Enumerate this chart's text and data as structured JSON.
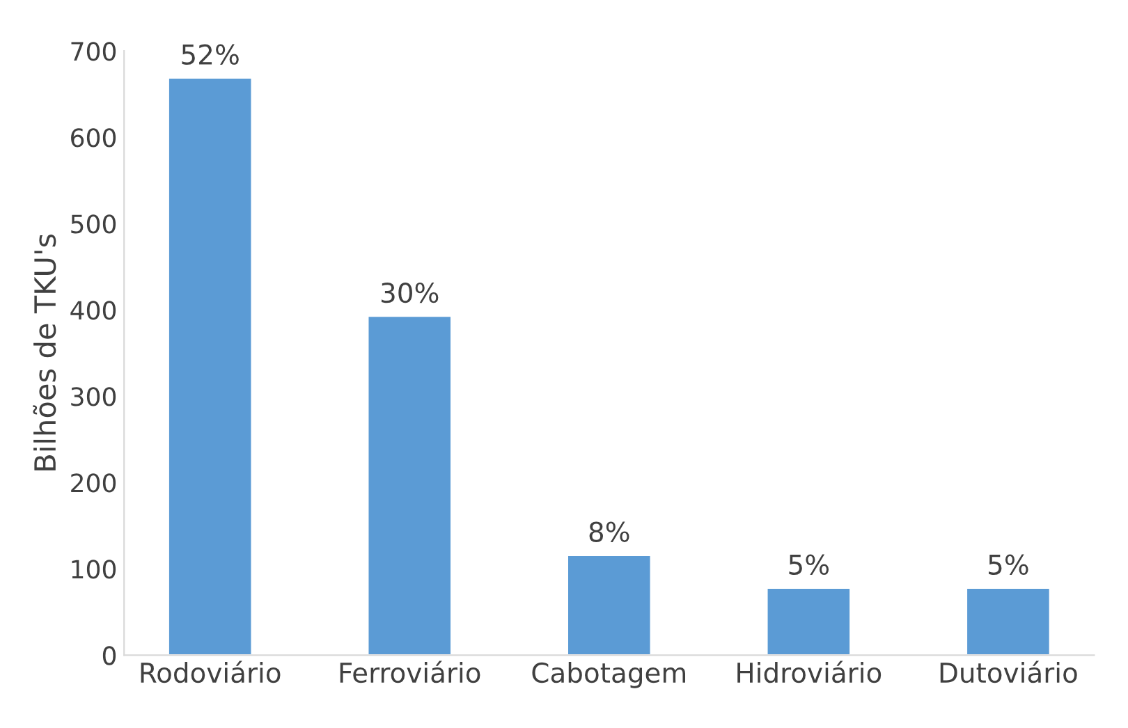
{
  "chart_data": {
    "type": "bar",
    "ylabel": "Bilhões de TKU's",
    "categories": [
      "Rodoviário",
      "Ferroviário",
      "Cabotagem",
      "Hidroviário",
      "Dutoviário"
    ],
    "values": [
      669,
      393,
      116,
      78,
      78
    ],
    "annotations": [
      {
        "text": "52%",
        "x": "Rodoviário",
        "y": 669
      },
      {
        "text": "30%",
        "x": "Ferroviário",
        "y": 393
      },
      {
        "text": "8%",
        "x": "Cabotagem",
        "y": 116
      },
      {
        "text": "5%",
        "x": "Hidroviário",
        "y": 78
      },
      {
        "text": "5%",
        "x": "Dutoviário",
        "y": 78
      }
    ],
    "color": "#5b9bd5",
    "ylim": [
      0,
      700
    ],
    "yticks": [
      0,
      100,
      200,
      300,
      400,
      500,
      600,
      700
    ],
    "grid": false
  }
}
